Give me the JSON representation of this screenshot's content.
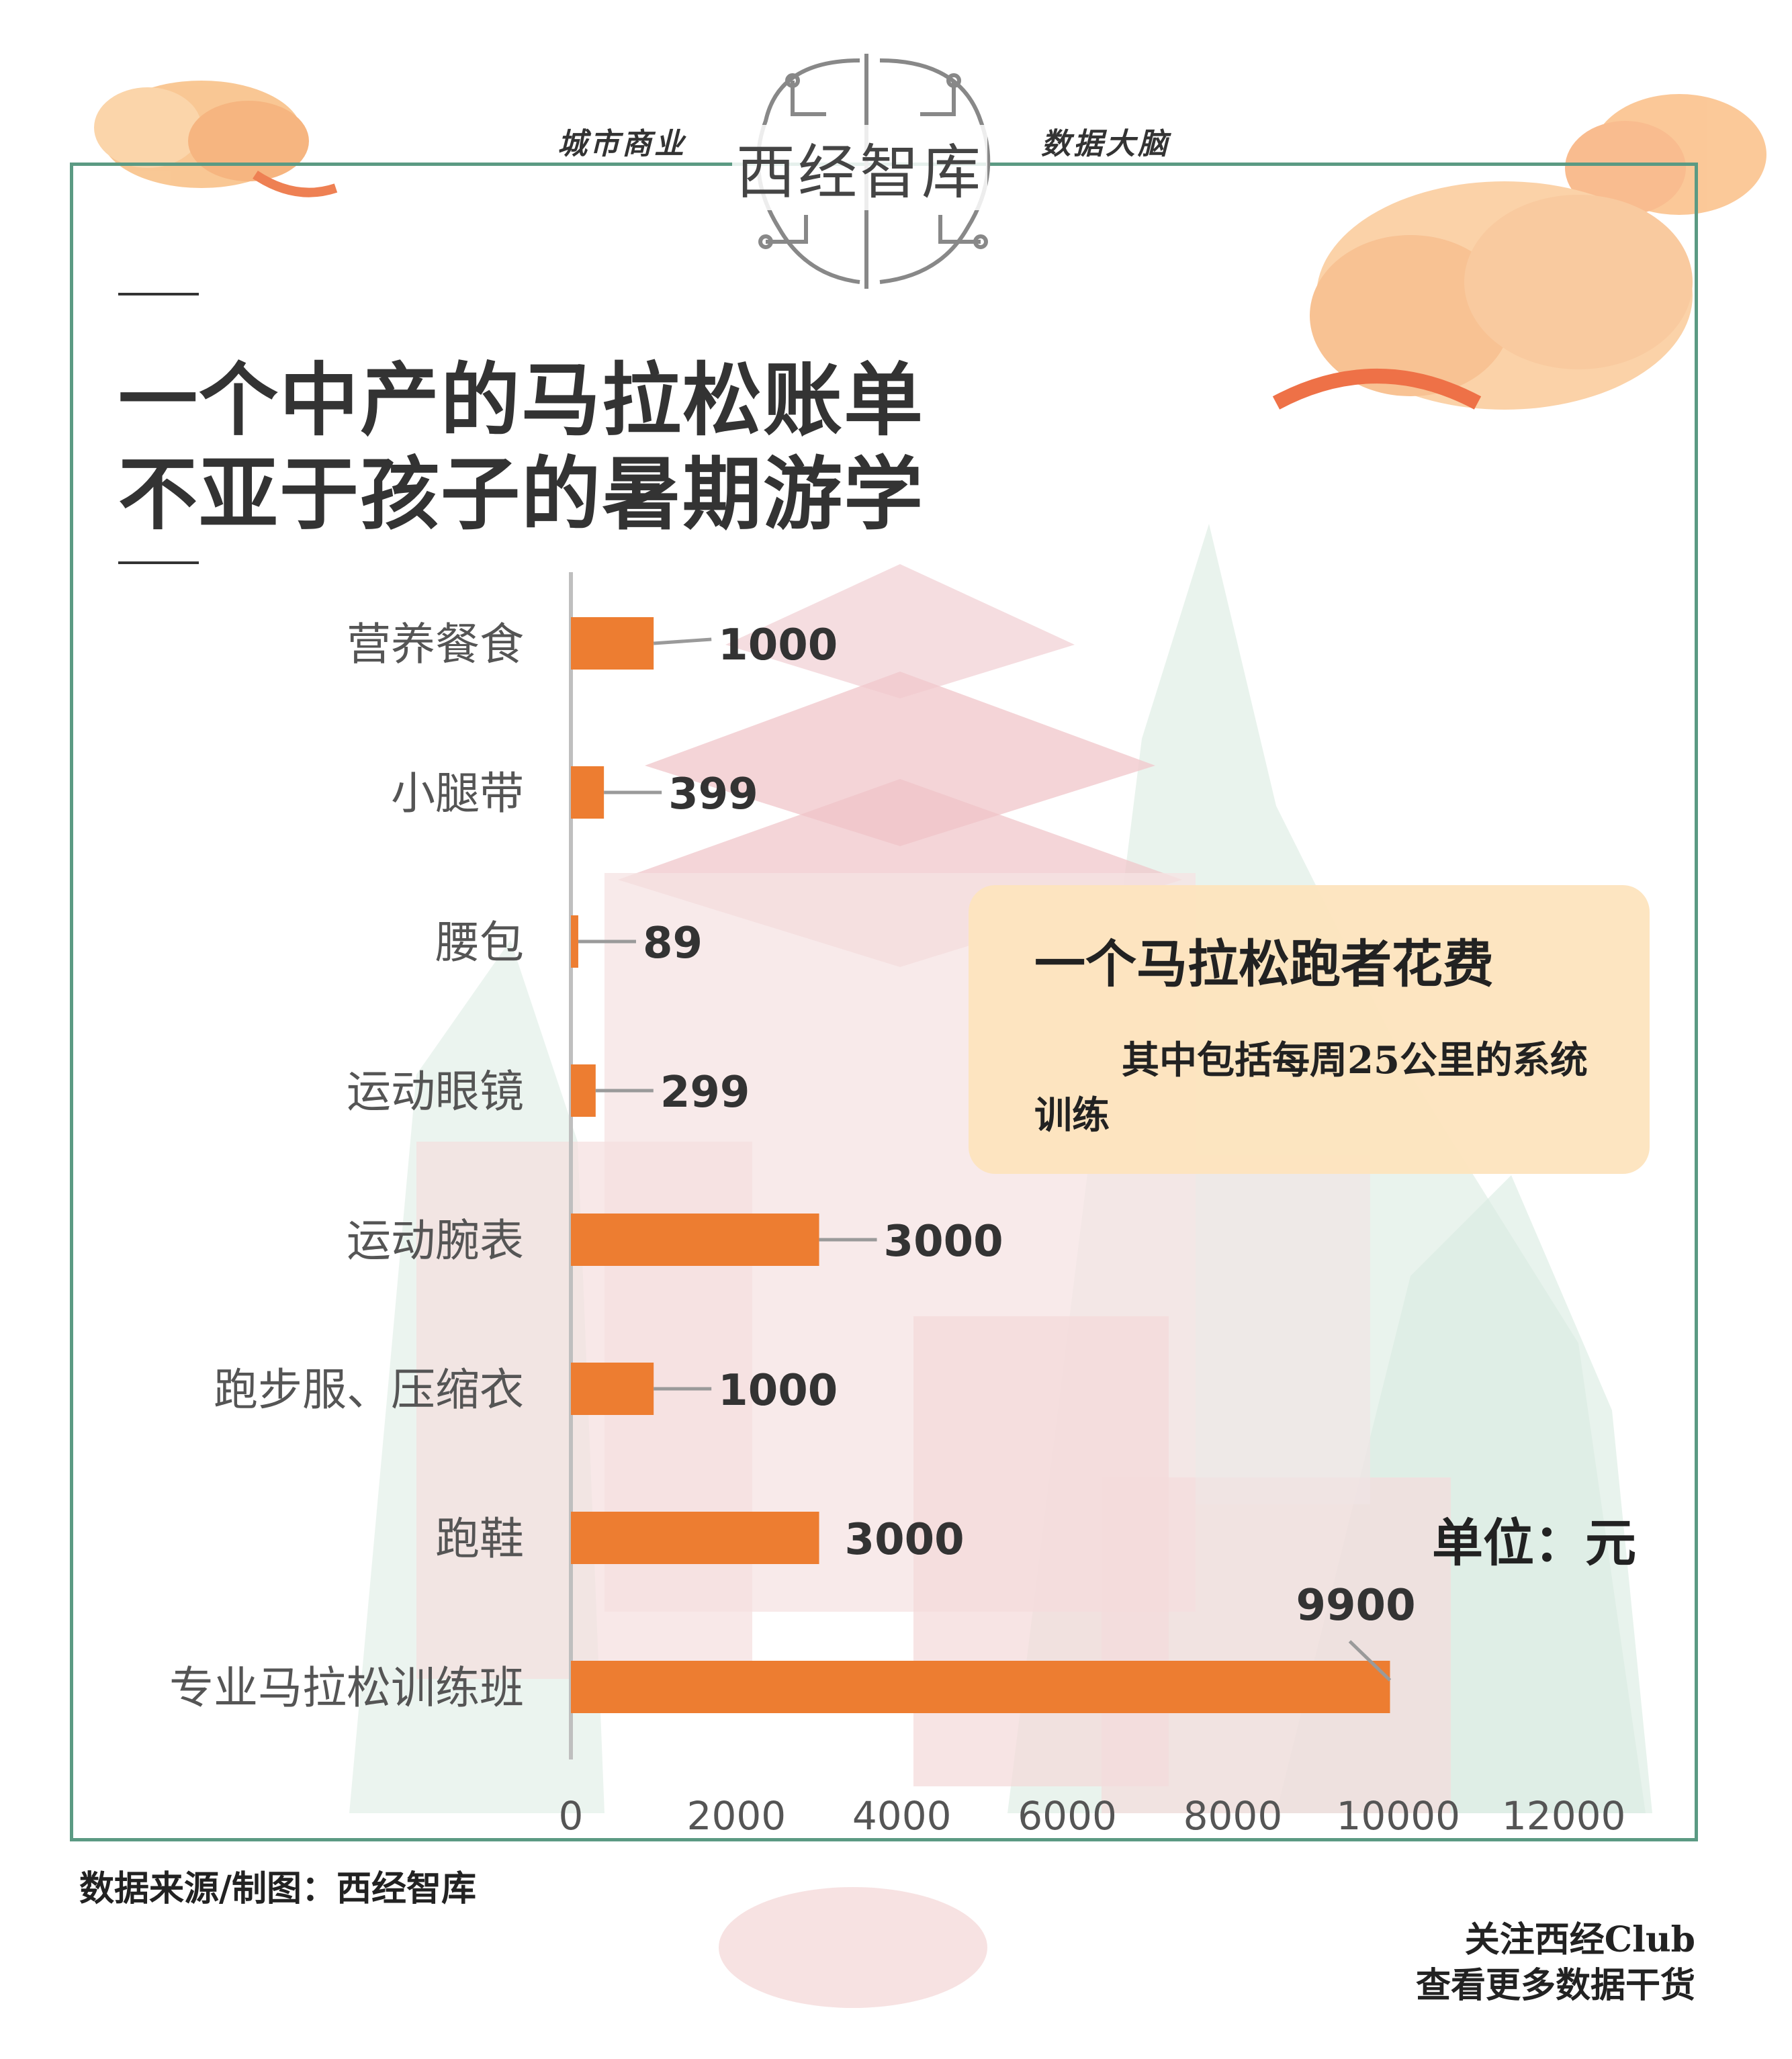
{
  "header": {
    "brand_logo": "西经智库",
    "tag_left": "城市商业",
    "tag_right": "数据大脑"
  },
  "title": {
    "line1": "一个中产的马拉松账单",
    "line2": "不亚于孩子的暑期游学"
  },
  "callout": {
    "title": "一个马拉松跑者花费",
    "body": "其中包括每周25公里的系统训练"
  },
  "unit_label": "单位：元",
  "source": "数据来源/制图：西经智库",
  "footer": {
    "line1": "关注西经Club",
    "line2": "查看更多数据干货"
  },
  "colors": {
    "bar": "#ED7D31",
    "frame": "#5b9a83",
    "callout_bg": "#fde4be",
    "text": "#333333"
  },
  "chart_data": {
    "type": "bar",
    "orientation": "horizontal",
    "categories": [
      "营养餐食",
      "小腿带",
      "腰包",
      "运动眼镜",
      "运动腕表",
      "跑步服、压缩衣",
      "跑鞋",
      "专业马拉松训练班"
    ],
    "values": [
      1000,
      399,
      89,
      299,
      3000,
      1000,
      3000,
      9900
    ],
    "value_labels": [
      "1000",
      "399",
      "89",
      "299",
      "3000",
      "1000",
      "3000",
      "9900"
    ],
    "xlim": [
      0,
      12000
    ],
    "x_ticks": [
      "0",
      "2000",
      "4000",
      "6000",
      "8000",
      "10000",
      "12000"
    ],
    "grid": false,
    "legend": "none"
  }
}
